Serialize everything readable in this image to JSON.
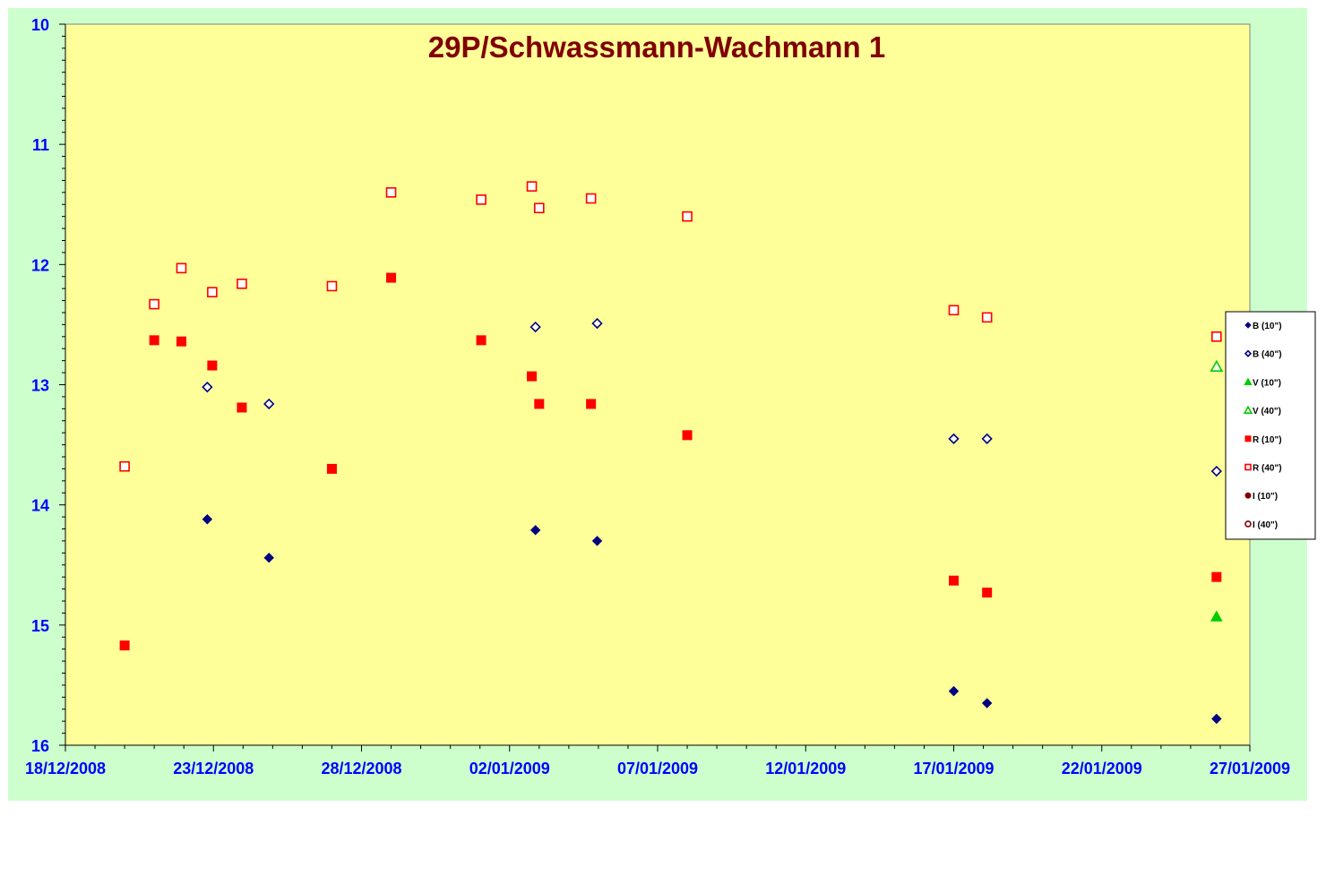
{
  "chart_data": {
    "type": "scatter",
    "title": "29P/Schwassmann-Wachmann 1",
    "xlabel": "",
    "ylabel": "",
    "x_axis": {
      "min": "2008-12-18",
      "max": "2009-01-27",
      "tick_labels": [
        "18/12/2008",
        "23/12/2008",
        "28/12/2008",
        "02/01/2009",
        "07/01/2009",
        "12/01/2009",
        "17/01/2009",
        "22/01/2009",
        "27/01/2009"
      ]
    },
    "y_axis": {
      "min": 10,
      "max": 16,
      "reversed": true,
      "tick_labels": [
        "10",
        "11",
        "12",
        "13",
        "14",
        "15",
        "16"
      ]
    },
    "grid": false,
    "legend_position": "right",
    "colors": {
      "chart_bg": "#ccffcc",
      "plot_bg": "#ffff99",
      "title": "#800000",
      "axis_labels": "#0000ff",
      "navy": "#000080",
      "red": "#ff0000",
      "green": "#00cc00",
      "dark_red": "#800000"
    },
    "series": [
      {
        "name": "B (10\")",
        "marker": "diamond",
        "filled": true,
        "color": "#000080",
        "points": [
          {
            "x": "2008-12-22 19:00",
            "y": 14.12
          },
          {
            "x": "2008-12-24 21:00",
            "y": 14.44
          },
          {
            "x": "2009-01-02 21:00",
            "y": 14.21
          },
          {
            "x": "2009-01-04 23:00",
            "y": 14.3
          },
          {
            "x": "2009-01-17 00:00",
            "y": 15.55
          },
          {
            "x": "2009-01-18 03:00",
            "y": 15.65
          },
          {
            "x": "2009-01-25 21:00",
            "y": 15.78
          }
        ]
      },
      {
        "name": "B (40\")",
        "marker": "diamond",
        "filled": false,
        "color": "#000080",
        "points": [
          {
            "x": "2008-12-22 19:00",
            "y": 13.02
          },
          {
            "x": "2008-12-24 21:00",
            "y": 13.16
          },
          {
            "x": "2009-01-02 21:00",
            "y": 12.52
          },
          {
            "x": "2009-01-04 23:00",
            "y": 12.49
          },
          {
            "x": "2009-01-17 00:00",
            "y": 13.45
          },
          {
            "x": "2009-01-18 03:00",
            "y": 13.45
          },
          {
            "x": "2009-01-25 21:00",
            "y": 13.72
          }
        ]
      },
      {
        "name": "V (10\")",
        "marker": "triangle",
        "filled": true,
        "color": "#00cc00",
        "points": [
          {
            "x": "2009-01-25 21:00",
            "y": 14.93
          }
        ]
      },
      {
        "name": "V (40\")",
        "marker": "triangle",
        "filled": false,
        "color": "#00cc00",
        "points": [
          {
            "x": "2009-01-25 21:00",
            "y": 12.85
          }
        ]
      },
      {
        "name": "R (10\")",
        "marker": "square",
        "filled": true,
        "color": "#ff0000",
        "points": [
          {
            "x": "2008-12-20 00:00",
            "y": 15.17
          },
          {
            "x": "2008-12-21 00:00",
            "y": 12.63
          },
          {
            "x": "2008-12-21 22:00",
            "y": 12.64
          },
          {
            "x": "2008-12-22 23:00",
            "y": 12.84
          },
          {
            "x": "2008-12-23 23:00",
            "y": 13.19
          },
          {
            "x": "2008-12-27 00:00",
            "y": 13.7
          },
          {
            "x": "2008-12-29 00:00",
            "y": 12.11
          },
          {
            "x": "2009-01-01 01:00",
            "y": 12.63
          },
          {
            "x": "2009-01-02 18:00",
            "y": 12.93
          },
          {
            "x": "2009-01-03 00:00",
            "y": 13.16
          },
          {
            "x": "2009-01-04 18:00",
            "y": 13.16
          },
          {
            "x": "2009-01-08 00:00",
            "y": 13.42
          },
          {
            "x": "2009-01-17 00:00",
            "y": 14.63
          },
          {
            "x": "2009-01-18 03:00",
            "y": 14.73
          },
          {
            "x": "2009-01-25 21:00",
            "y": 14.6
          }
        ]
      },
      {
        "name": "R (40\")",
        "marker": "square",
        "filled": false,
        "color": "#ff0000",
        "points": [
          {
            "x": "2008-12-20 00:00",
            "y": 13.68
          },
          {
            "x": "2008-12-21 00:00",
            "y": 12.33
          },
          {
            "x": "2008-12-21 22:00",
            "y": 12.03
          },
          {
            "x": "2008-12-22 23:00",
            "y": 12.23
          },
          {
            "x": "2008-12-23 23:00",
            "y": 12.16
          },
          {
            "x": "2008-12-27 00:00",
            "y": 12.18
          },
          {
            "x": "2008-12-29 00:00",
            "y": 11.4
          },
          {
            "x": "2009-01-01 01:00",
            "y": 11.46
          },
          {
            "x": "2009-01-02 18:00",
            "y": 11.35
          },
          {
            "x": "2009-01-03 00:00",
            "y": 11.53
          },
          {
            "x": "2009-01-04 18:00",
            "y": 11.45
          },
          {
            "x": "2009-01-08 00:00",
            "y": 11.6
          },
          {
            "x": "2009-01-17 00:00",
            "y": 12.38
          },
          {
            "x": "2009-01-18 03:00",
            "y": 12.44
          },
          {
            "x": "2009-01-25 21:00",
            "y": 12.6
          }
        ]
      },
      {
        "name": "I (10\")",
        "marker": "circle",
        "filled": true,
        "color": "#800000",
        "points": []
      },
      {
        "name": "I (40\")",
        "marker": "circle",
        "filled": false,
        "color": "#800000",
        "points": []
      }
    ]
  }
}
